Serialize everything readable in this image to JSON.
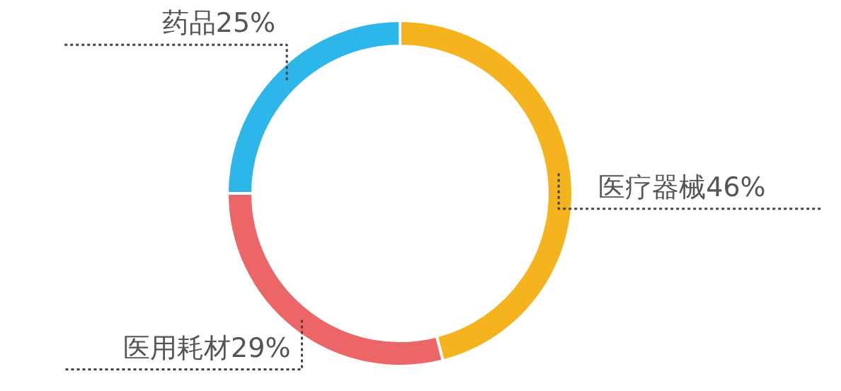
{
  "chart_data": {
    "type": "donut",
    "categories": [
      "医疗器械",
      "医用耗材",
      "药品"
    ],
    "values": [
      46,
      29,
      25
    ],
    "colors": [
      "#f5b41d",
      "#ec6567",
      "#2cb6ea"
    ],
    "value_labels": [
      "46%",
      "29%",
      "25%"
    ]
  }
}
